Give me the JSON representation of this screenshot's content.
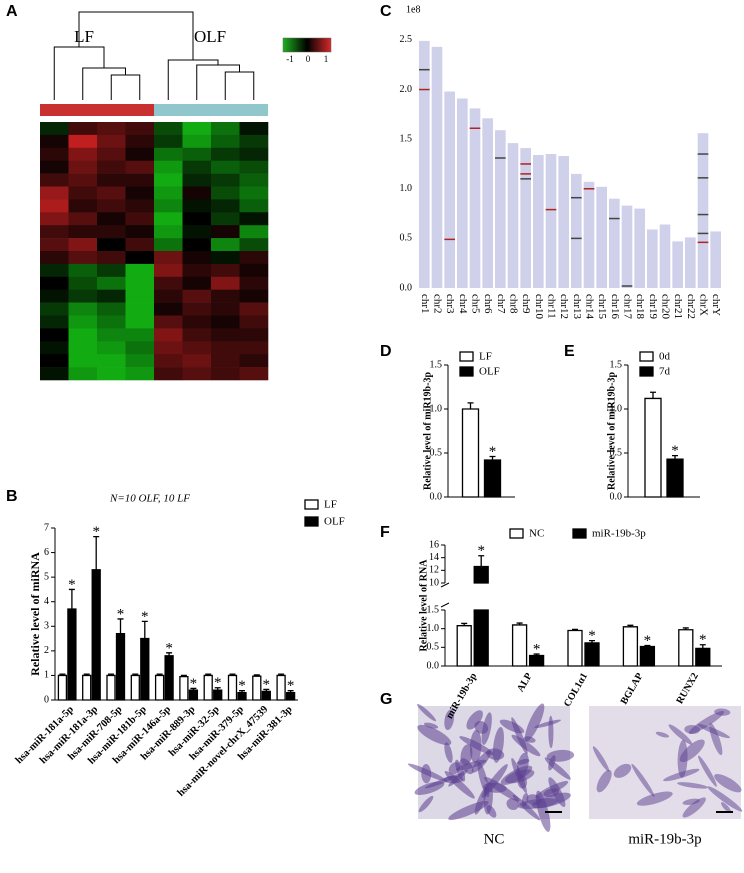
{
  "panels": [
    "A",
    "B",
    "C",
    "D",
    "E",
    "F",
    "G"
  ],
  "micrographs": {
    "labels": [
      "NC",
      "miR-19b-3p"
    ]
  },
  "chart_data": [
    {
      "type": "heatmap",
      "groups": [
        {
          "name": "LF",
          "color": "#c8312f"
        },
        {
          "name": "OLF",
          "color": "#8fc7cc"
        }
      ],
      "zlim": [
        -1,
        1
      ],
      "colorbar_ticks": [
        -1,
        0,
        1
      ],
      "values": [
        [
          -0.2,
          0.3,
          0.4,
          0.3,
          -0.4,
          -0.9,
          -0.6,
          -0.1
        ],
        [
          0.1,
          0.9,
          0.5,
          0.2,
          -0.3,
          -0.8,
          -0.5,
          -0.3
        ],
        [
          0.2,
          0.6,
          0.4,
          0.1,
          -0.6,
          -0.5,
          -0.3,
          -0.2
        ],
        [
          0.1,
          0.5,
          0.3,
          0.4,
          -0.8,
          -0.3,
          -0.5,
          -0.4
        ],
        [
          0.3,
          0.4,
          0.2,
          0.2,
          -0.9,
          -0.2,
          -0.3,
          -0.5
        ],
        [
          0.7,
          0.3,
          0.4,
          0.1,
          -0.8,
          0.1,
          -0.4,
          -0.6
        ],
        [
          0.8,
          0.2,
          0.3,
          0.2,
          -0.7,
          -0.1,
          -0.2,
          -0.5
        ],
        [
          0.6,
          0.4,
          0.1,
          0.3,
          -0.9,
          0.0,
          -0.3,
          -0.1
        ],
        [
          0.3,
          0.2,
          0.2,
          0.1,
          -0.8,
          -0.1,
          0.1,
          -0.7
        ],
        [
          0.4,
          0.6,
          0.0,
          0.3,
          -0.6,
          0.0,
          -0.7,
          -0.4
        ],
        [
          0.2,
          0.4,
          0.3,
          0.0,
          0.5,
          0.1,
          -0.1,
          0.2
        ],
        [
          -0.2,
          -0.5,
          -0.3,
          -0.9,
          0.6,
          0.2,
          0.3,
          0.1
        ],
        [
          0.0,
          -0.4,
          -0.6,
          -0.9,
          0.3,
          0.1,
          0.6,
          0.2
        ],
        [
          -0.1,
          -0.3,
          -0.2,
          -0.9,
          0.2,
          0.4,
          0.2,
          0.1
        ],
        [
          -0.3,
          -0.7,
          -0.5,
          -0.9,
          0.1,
          0.3,
          0.2,
          0.4
        ],
        [
          -0.2,
          -0.8,
          -0.6,
          -0.9,
          0.4,
          0.2,
          0.1,
          0.3
        ],
        [
          0.0,
          -0.9,
          -0.7,
          -0.7,
          0.6,
          0.3,
          0.2,
          0.2
        ],
        [
          -0.1,
          -0.9,
          -0.8,
          -0.6,
          0.5,
          0.4,
          0.3,
          0.3
        ],
        [
          0.0,
          -0.9,
          -0.9,
          -0.7,
          0.4,
          0.5,
          0.3,
          0.2
        ],
        [
          -0.1,
          -0.8,
          -0.9,
          -0.8,
          0.3,
          0.4,
          0.3,
          0.4
        ]
      ]
    },
    {
      "type": "bar",
      "title": "N=10 OLF, 10 LF",
      "y_label": "Relative level of miRNA",
      "categories": [
        "hsa-miR-181a-5p",
        "hsa-miR-181a-3p",
        "hsa-miR-708-5p",
        "hsa-miR-181b-5p",
        "hsa-miR-146a-5p",
        "hsa-miR-889-3p",
        "hsa-miR-32-5p",
        "hsa-miR-379-5p",
        "hsa-miR-novel-chrX_47539",
        "hsa-miR-381-3p"
      ],
      "series": [
        {
          "name": "LF",
          "color": "#ffffff",
          "values": [
            1,
            1,
            1,
            1,
            1,
            0.95,
            1,
            1,
            0.97,
            1
          ],
          "errors": [
            0.05,
            0.05,
            0.05,
            0.05,
            0.05,
            0.05,
            0.05,
            0.05,
            0.05,
            0.05
          ]
        },
        {
          "name": "OLF",
          "color": "#000000",
          "values": [
            3.7,
            5.3,
            2.7,
            2.5,
            1.8,
            0.4,
            0.4,
            0.3,
            0.35,
            0.3
          ],
          "errors": [
            0.8,
            1.35,
            0.6,
            0.7,
            0.12,
            0.07,
            0.1,
            0.08,
            0.08,
            0.08
          ],
          "annotations": [
            "*",
            "*",
            "*",
            "*",
            "*",
            "*",
            "*",
            "*",
            "*",
            "*"
          ]
        }
      ],
      "ylim": [
        0,
        7
      ],
      "yticks": [
        0,
        1,
        2,
        3,
        4,
        5,
        6,
        7
      ]
    },
    {
      "type": "chromosome",
      "offset_label": "1e8",
      "color": "#cfd0ea",
      "categories": [
        "chr1",
        "chr2",
        "chr3",
        "chr4",
        "chr5",
        "chr6",
        "chr7",
        "chr8",
        "chr9",
        "chr10",
        "chr11",
        "chr12",
        "chr13",
        "chr14",
        "chr15",
        "chr16",
        "chr17",
        "chr18",
        "chr19",
        "chr20",
        "chr21",
        "chr22",
        "chrX",
        "chrY"
      ],
      "values": [
        2.49,
        2.43,
        1.98,
        1.91,
        1.81,
        1.71,
        1.59,
        1.46,
        1.41,
        1.34,
        1.35,
        1.33,
        1.15,
        1.07,
        1.02,
        0.9,
        0.83,
        0.8,
        0.59,
        0.64,
        0.47,
        0.51,
        1.56,
        0.57
      ],
      "markers": [
        {
          "color": "#b22222",
          "categories": [
            "chr1",
            "chr3",
            "chr5",
            "chr9",
            "chr9",
            "chr11",
            "chr14",
            "chrX"
          ],
          "values": [
            2.0,
            0.49,
            1.61,
            1.25,
            1.15,
            0.79,
            1.0,
            0.46
          ]
        },
        {
          "color": "#444444",
          "categories": [
            "chr1",
            "chr7",
            "chr9",
            "chr13",
            "chr13",
            "chr16",
            "chr17",
            "chrX",
            "chrX",
            "chrX",
            "chrX"
          ],
          "values": [
            2.2,
            1.31,
            1.1,
            0.91,
            0.5,
            0.7,
            0.02,
            1.35,
            1.11,
            0.74,
            0.55
          ]
        }
      ],
      "ylim": [
        0,
        2.6
      ],
      "yticks": [
        {
          "value": 0,
          "label": "0.0"
        },
        0.5,
        {
          "value": 1,
          "label": "1.0"
        },
        1.5,
        {
          "value": 2,
          "label": "2.0"
        },
        2.5
      ]
    },
    {
      "type": "bar",
      "y_label": "Relative level of miR19b-3p",
      "series": [
        {
          "name": "LF",
          "color": "#ffffff",
          "values": [
            1.0
          ],
          "errors": [
            0.07
          ]
        },
        {
          "name": "OLF",
          "color": "#000000",
          "values": [
            0.42
          ],
          "errors": [
            0.04
          ],
          "annotations": [
            "*"
          ]
        }
      ],
      "ylim": [
        0,
        1.5
      ],
      "yticks": [
        {
          "value": 0,
          "label": "0.0"
        },
        0.5,
        {
          "value": 1,
          "label": "1.0"
        },
        1.5
      ]
    },
    {
      "type": "bar",
      "y_label": "Relative level of miR19b-3p",
      "series": [
        {
          "name": "0d",
          "color": "#ffffff",
          "values": [
            1.12
          ],
          "errors": [
            0.07
          ]
        },
        {
          "name": "7d",
          "color": "#000000",
          "values": [
            0.43
          ],
          "errors": [
            0.04
          ],
          "annotations": [
            "*"
          ]
        }
      ],
      "ylim": [
        0,
        1.5
      ],
      "yticks": [
        {
          "value": 0,
          "label": "0.0"
        },
        0.5,
        {
          "value": 1,
          "label": "1.0"
        },
        1.5
      ]
    },
    {
      "type": "bar",
      "y_label": "Relative level of RNA",
      "categories": [
        "miR-19b-3p",
        "ALP",
        "COL1α1",
        "BGLAP",
        "RUNX2"
      ],
      "series": [
        {
          "name": "NC",
          "color": "#ffffff",
          "values": [
            1.08,
            1.1,
            0.95,
            1.05,
            0.97
          ],
          "errors": [
            0.06,
            0.05,
            0.03,
            0.04,
            0.05
          ]
        },
        {
          "name": "miR-19b-3p",
          "color": "#000000",
          "values": [
            12.6,
            0.28,
            0.62,
            0.52,
            0.47
          ],
          "errors": [
            1.7,
            0.04,
            0.06,
            0.03,
            0.1
          ],
          "annotations": [
            "*",
            "*",
            "*",
            "*",
            "*"
          ]
        }
      ],
      "ylim": [
        0,
        16
      ],
      "ybreak": [
        1.5,
        10
      ],
      "yticks": [
        {
          "value": 0,
          "label": "0.0"
        },
        0.5,
        {
          "value": 1,
          "label": "1.0"
        },
        1.5,
        10,
        12,
        14,
        16
      ]
    }
  ]
}
